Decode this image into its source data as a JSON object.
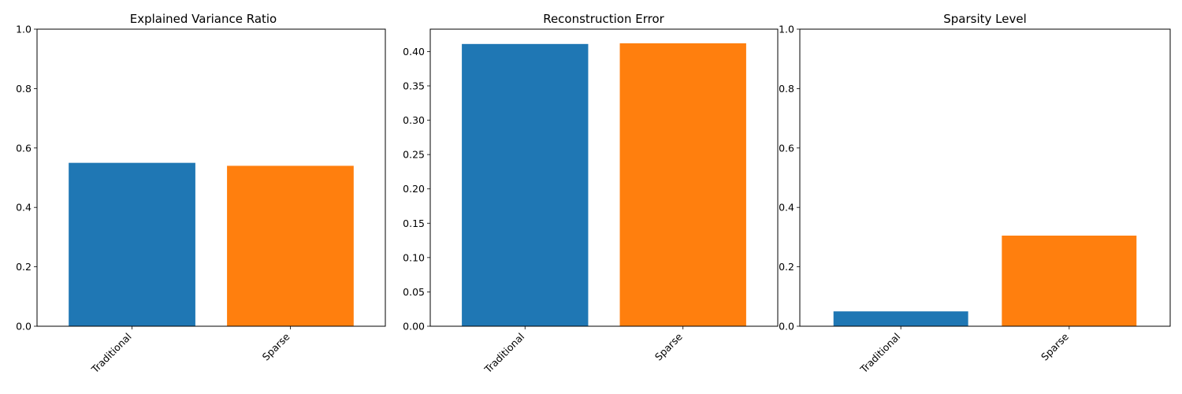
{
  "colors": {
    "series_1": "#1f77b4",
    "series_2": "#ff7f0e"
  },
  "chart_data": [
    {
      "type": "bar",
      "title": "Explained Variance Ratio",
      "categories": [
        "Traditional",
        "Sparse"
      ],
      "values": [
        0.55,
        0.54
      ],
      "xlabel": "",
      "ylabel": "",
      "ylim": [
        0,
        1.0
      ],
      "yticks": [
        "0.0",
        "0.2",
        "0.4",
        "0.6",
        "0.8",
        "1.0"
      ],
      "bar_colors": [
        "#1f77b4",
        "#ff7f0e"
      ],
      "grid": false,
      "xtick_rotation_deg": 45
    },
    {
      "type": "bar",
      "title": "Reconstruction Error",
      "categories": [
        "Traditional",
        "Sparse"
      ],
      "values": [
        0.411,
        0.412
      ],
      "xlabel": "",
      "ylabel": "",
      "ylim": [
        0,
        0.4326
      ],
      "yticks": [
        "0.00",
        "0.05",
        "0.10",
        "0.15",
        "0.20",
        "0.25",
        "0.30",
        "0.35",
        "0.40"
      ],
      "bar_colors": [
        "#1f77b4",
        "#ff7f0e"
      ],
      "grid": false,
      "xtick_rotation_deg": 45
    },
    {
      "type": "bar",
      "title": "Sparsity Level",
      "categories": [
        "Traditional",
        "Sparse"
      ],
      "values": [
        0.05,
        0.305
      ],
      "xlabel": "",
      "ylabel": "",
      "ylim": [
        0,
        1.0
      ],
      "yticks": [
        "0.0",
        "0.2",
        "0.4",
        "0.6",
        "0.8",
        "1.0"
      ],
      "bar_colors": [
        "#1f77b4",
        "#ff7f0e"
      ],
      "grid": false,
      "xtick_rotation_deg": 45
    }
  ]
}
